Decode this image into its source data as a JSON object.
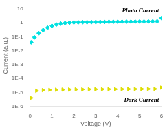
{
  "chart_data": {
    "type": "scatter",
    "xlabel": "Voltage (V)",
    "ylabel": "Current (a.u.)",
    "log": "y",
    "grid": false,
    "xlim": [
      0,
      6
    ],
    "xticks": [
      0,
      1,
      2,
      3,
      4,
      5,
      6
    ],
    "ylim": [
      1e-06,
      20
    ],
    "yticks": [
      {
        "value": 1e-06,
        "label": "1E-6"
      },
      {
        "value": 1e-05,
        "label": "1E-5"
      },
      {
        "value": 0.0001,
        "label": "1E-4"
      },
      {
        "value": 0.001,
        "label": "1E-3"
      },
      {
        "value": 0.01,
        "label": "1E-2"
      },
      {
        "value": 0.1,
        "label": "1E-1"
      },
      1,
      10
    ],
    "series": [
      {
        "color": "#00E0E0",
        "marker": "diamond",
        "x": [
          0.05,
          0.2,
          0.4,
          0.6,
          0.8,
          1.0,
          1.2,
          1.4,
          1.6,
          1.8,
          2.0,
          2.2,
          2.4,
          2.6,
          2.8,
          3.0,
          3.2,
          3.4,
          3.6,
          3.8,
          4.0,
          4.2,
          4.4,
          4.6,
          4.8,
          5.0,
          5.2,
          5.4,
          5.6,
          5.8,
          6.0
        ],
        "values": [
          0.04,
          0.09,
          0.18,
          0.3,
          0.44,
          0.6,
          0.75,
          0.87,
          0.95,
          1.01,
          1.05,
          1.08,
          1.1,
          1.11,
          1.12,
          1.13,
          1.14,
          1.15,
          1.16,
          1.17,
          1.18,
          1.19,
          1.2,
          1.21,
          1.22,
          1.23,
          1.24,
          1.25,
          1.26,
          1.27,
          2.2
        ]
      },
      {
        "color": "#DDDD00",
        "marker": "triangle-right",
        "x": [
          0.05,
          0.3,
          0.6,
          0.9,
          1.2,
          1.5,
          1.8,
          2.1,
          2.4,
          2.7,
          3.0,
          3.3,
          3.6,
          3.9,
          4.2,
          4.5,
          4.8,
          5.1,
          5.4,
          5.7,
          6.0
        ],
        "values": [
          4e-06,
          1.3e-05,
          1.45e-05,
          1.52e-05,
          1.56e-05,
          1.59e-05,
          1.61e-05,
          1.63e-05,
          1.65e-05,
          1.66e-05,
          1.67e-05,
          1.68e-05,
          1.69e-05,
          1.7e-05,
          1.71e-05,
          1.72e-05,
          1.73e-05,
          1.74e-05,
          1.75e-05,
          1.76e-05,
          2.2e-05
        ]
      }
    ],
    "annotations": [
      "Photo Current",
      "Dark Current"
    ]
  }
}
